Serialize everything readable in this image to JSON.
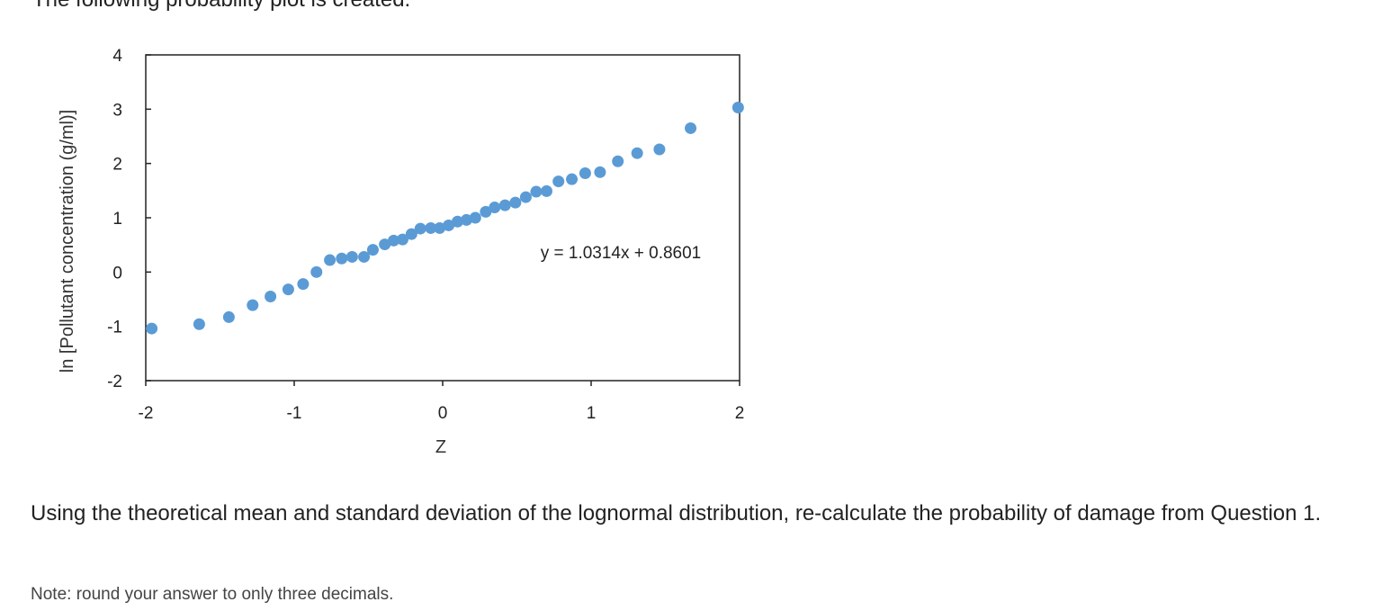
{
  "intro_text": "The following probability plot is created.",
  "question_text": "Using the theoretical mean and standard deviation of the lognormal distribution, re-calculate the probability of damage from Question 1.",
  "note_text": "Note: round your answer to only three decimals.",
  "chart_data": {
    "type": "scatter",
    "xlabel": "Z",
    "ylabel": "ln [Pollutant concentration (g/ml)]",
    "xlim": [
      -2,
      2
    ],
    "ylim": [
      -2,
      4
    ],
    "xticks": [
      "-2",
      "-1",
      "0",
      "1",
      "2"
    ],
    "yticks": [
      "-2",
      "-1",
      "0",
      "1",
      "2",
      "3",
      "4"
    ],
    "grid": false,
    "marker_color": "#5b9bd5",
    "trendline_label": "y = 1.0314x + 0.8601",
    "points": [
      [
        -1.96,
        -1.04
      ],
      [
        -1.64,
        -0.96
      ],
      [
        -1.44,
        -0.83
      ],
      [
        -1.28,
        -0.61
      ],
      [
        -1.16,
        -0.45
      ],
      [
        -1.04,
        -0.32
      ],
      [
        -0.94,
        -0.22
      ],
      [
        -0.85,
        0.0
      ],
      [
        -0.76,
        0.22
      ],
      [
        -0.68,
        0.25
      ],
      [
        -0.61,
        0.28
      ],
      [
        -0.53,
        0.28
      ],
      [
        -0.47,
        0.41
      ],
      [
        -0.39,
        0.51
      ],
      [
        -0.33,
        0.58
      ],
      [
        -0.27,
        0.6
      ],
      [
        -0.21,
        0.7
      ],
      [
        -0.15,
        0.8
      ],
      [
        -0.08,
        0.81
      ],
      [
        -0.02,
        0.81
      ],
      [
        0.04,
        0.86
      ],
      [
        0.1,
        0.93
      ],
      [
        0.16,
        0.96
      ],
      [
        0.22,
        1.0
      ],
      [
        0.29,
        1.11
      ],
      [
        0.35,
        1.19
      ],
      [
        0.42,
        1.23
      ],
      [
        0.49,
        1.28
      ],
      [
        0.56,
        1.38
      ],
      [
        0.63,
        1.48
      ],
      [
        0.7,
        1.49
      ],
      [
        0.78,
        1.67
      ],
      [
        0.87,
        1.71
      ],
      [
        0.96,
        1.82
      ],
      [
        1.06,
        1.84
      ],
      [
        1.18,
        2.04
      ],
      [
        1.31,
        2.19
      ],
      [
        1.46,
        2.26
      ],
      [
        1.67,
        2.65
      ],
      [
        1.99,
        3.03
      ]
    ]
  }
}
